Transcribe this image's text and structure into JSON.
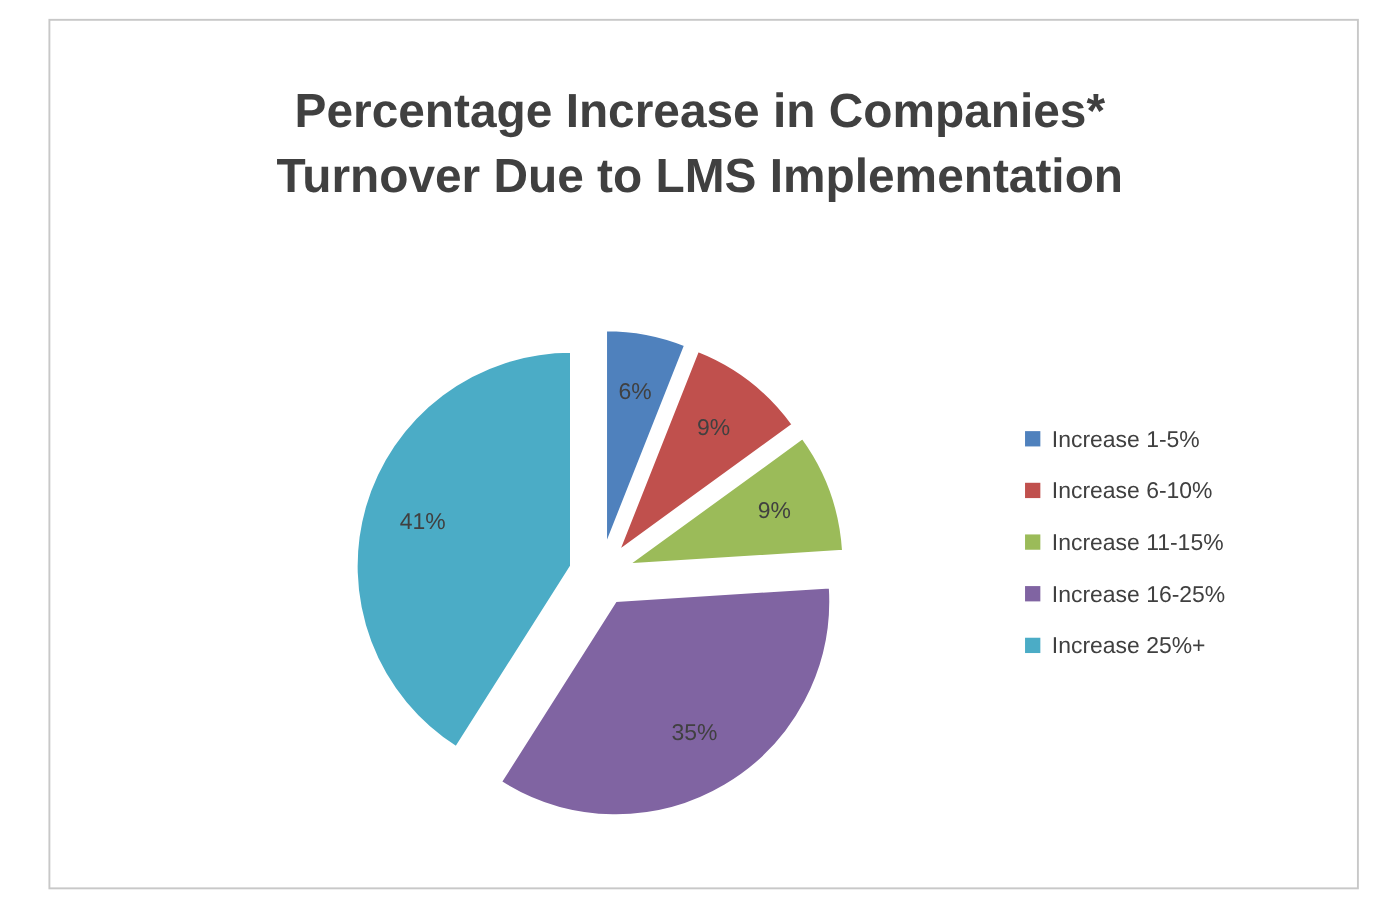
{
  "chart_data": {
    "type": "pie",
    "title": "Percentage Increase in Companies* Turnover Due to LMS Implementation",
    "categories": [
      "Increase 1-5%",
      "Increase 6-10%",
      "Increase 11-15%",
      "Increase 16-25%",
      "Increase 25%+"
    ],
    "values": [
      6,
      9,
      9,
      35,
      41
    ],
    "colors": [
      "#4f81bd",
      "#c0504d",
      "#9bbb59",
      "#8064a2",
      "#4bacc6"
    ],
    "value_labels": [
      "6%",
      "9%",
      "9%",
      "35%",
      "41%"
    ],
    "legend": "right"
  }
}
